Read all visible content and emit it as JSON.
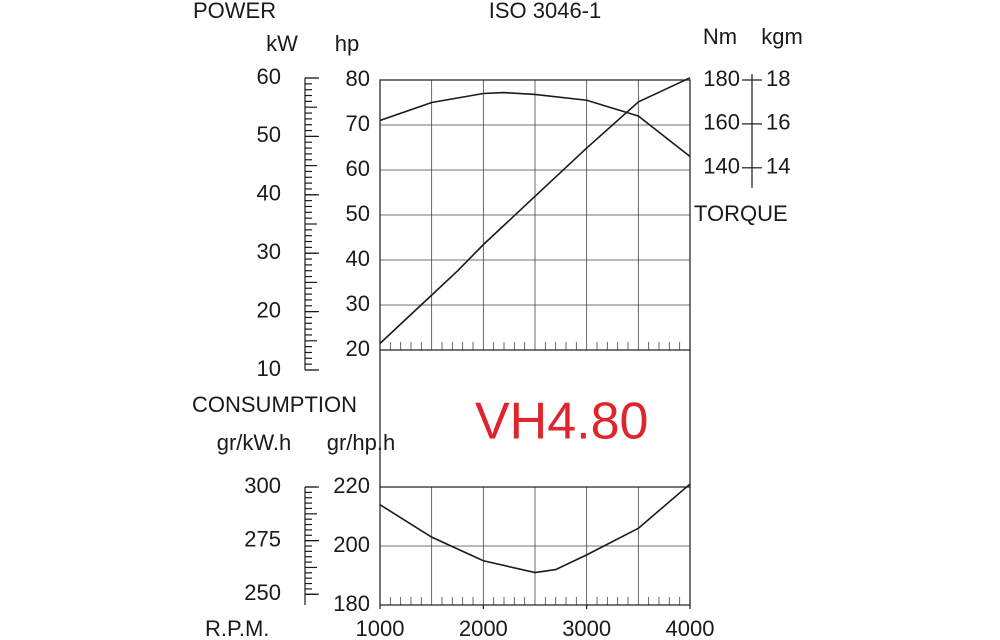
{
  "model": "VH4.80",
  "chart_data": [
    {
      "type": "line",
      "title": "ISO 3046-1",
      "ylabel": "hp",
      "ylim": [
        20,
        80
      ],
      "yticks": [
        20,
        30,
        40,
        50,
        60,
        70,
        80
      ],
      "y3label": "kW",
      "y3lim": [
        10,
        60
      ],
      "y3ticks": [
        10,
        20,
        30,
        40,
        50,
        60
      ],
      "y2label": "Nm",
      "y2lim": [
        57,
        180
      ],
      "y2ticks": [
        140,
        160,
        180
      ],
      "y4label": "kgm",
      "y4lim": [
        5.7,
        18
      ],
      "y4ticks": [
        14,
        16,
        18
      ],
      "xlim": [
        1000,
        4000
      ],
      "xticks": [
        1000,
        1500,
        2000,
        2500,
        3000,
        3500,
        4000
      ],
      "grid": true,
      "x": [
        1000,
        1500,
        2000,
        2200,
        2500,
        3000,
        3500,
        4000
      ],
      "series": [
        {
          "name": "POWER",
          "color": "#1a1a1a",
          "axis": "y",
          "values": [
            71,
            75,
            77,
            77.2,
            76.8,
            75.5,
            72,
            63
          ]
        },
        {
          "name": "TORQUE",
          "color": "#1a1a1a",
          "axis": "y2",
          "values": [
            60,
            71,
            82,
            93,
            105,
            127,
            149,
            170,
            181
          ],
          "x": [
            1000,
            1250,
            1500,
            1750,
            2000,
            2500,
            3000,
            3500,
            4000
          ]
        }
      ]
    },
    {
      "type": "line",
      "title": "CONSUMPTION",
      "xlabel": "R.P.M.",
      "ylabel": "gr/hp.h",
      "ylim": [
        180,
        220
      ],
      "yticks": [
        180,
        200,
        220
      ],
      "y2label": "gr/kW.h",
      "y2lim": [
        245,
        300
      ],
      "y2ticks": [
        250,
        275,
        300
      ],
      "xlim": [
        1000,
        4000
      ],
      "xticks": [
        1000,
        2000,
        3000,
        4000
      ],
      "grid": true,
      "x": [
        1000,
        1500,
        2000,
        2500,
        2700,
        3000,
        3500,
        4000
      ],
      "series": [
        {
          "color": "#1a1a1a",
          "axis": "y",
          "values": [
            214,
            203,
            195,
            191,
            192,
            197,
            206,
            221
          ]
        }
      ]
    }
  ]
}
